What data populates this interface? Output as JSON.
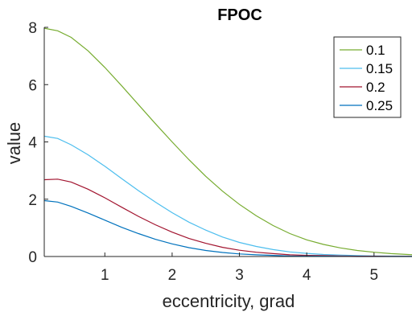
{
  "chart_data": {
    "type": "line",
    "title": "FPOC",
    "xlabel": "eccentricity, grad",
    "ylabel": "value",
    "xlim": [
      0.1,
      5.6
    ],
    "ylim": [
      0,
      8
    ],
    "xticks": [
      1,
      2,
      3,
      4,
      5
    ],
    "yticks": [
      0,
      2,
      4,
      6,
      8
    ],
    "grid": false,
    "legend": "top-right",
    "x": [
      0.1,
      0.3,
      0.5,
      0.75,
      1,
      1.25,
      1.5,
      1.75,
      2,
      2.25,
      2.5,
      2.75,
      3,
      3.25,
      3.5,
      3.75,
      4,
      4.25,
      4.5,
      4.75,
      5,
      5.25,
      5.5,
      5.6
    ],
    "series": [
      {
        "name": "0.1",
        "color": "#77AC30",
        "values": [
          7.97,
          7.88,
          7.65,
          7.18,
          6.6,
          5.96,
          5.3,
          4.64,
          4.0,
          3.38,
          2.8,
          2.28,
          1.82,
          1.42,
          1.08,
          0.8,
          0.58,
          0.42,
          0.3,
          0.21,
          0.15,
          0.1,
          0.07,
          0.06
        ]
      },
      {
        "name": "0.15",
        "color": "#4DBEEE",
        "values": [
          4.2,
          4.12,
          3.9,
          3.55,
          3.15,
          2.72,
          2.3,
          1.9,
          1.53,
          1.2,
          0.92,
          0.68,
          0.49,
          0.35,
          0.24,
          0.16,
          0.11,
          0.07,
          0.05,
          0.03,
          0.02,
          0.015,
          0.01,
          0.01
        ]
      },
      {
        "name": "0.2",
        "color": "#A2142F",
        "values": [
          2.68,
          2.7,
          2.6,
          2.35,
          2.05,
          1.72,
          1.4,
          1.11,
          0.85,
          0.63,
          0.46,
          0.32,
          0.22,
          0.15,
          0.1,
          0.06,
          0.04,
          0.03,
          0.02,
          0.01,
          0.01,
          0.005,
          0.005,
          0.0
        ]
      },
      {
        "name": "0.25",
        "color": "#0072BD",
        "values": [
          1.95,
          1.9,
          1.75,
          1.52,
          1.27,
          1.02,
          0.8,
          0.6,
          0.44,
          0.31,
          0.21,
          0.14,
          0.09,
          0.06,
          0.04,
          0.02,
          0.015,
          0.01,
          0.005,
          0.0,
          0.0,
          0.0,
          0.0,
          0.0
        ]
      }
    ]
  }
}
